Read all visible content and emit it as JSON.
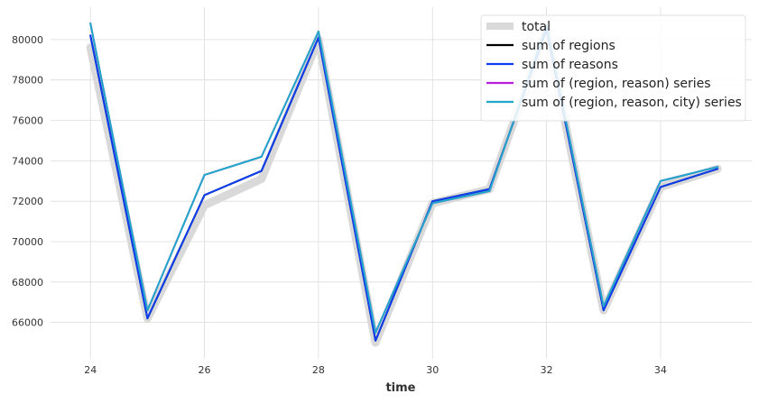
{
  "chart_data": {
    "type": "line",
    "title": "",
    "xlabel": "time",
    "ylabel": "",
    "x": [
      24,
      25,
      26,
      27,
      28,
      29,
      30,
      31,
      32,
      33,
      34,
      35
    ],
    "xlim": [
      23.3,
      35.6
    ],
    "ylim": [
      64200,
      81600
    ],
    "xticks": [
      24,
      26,
      28,
      30,
      32,
      34
    ],
    "yticks": [
      66000,
      68000,
      70000,
      72000,
      74000,
      76000,
      78000,
      80000
    ],
    "grid": true,
    "legend_position": "top-right",
    "series": [
      {
        "name": "total",
        "color": "#d9d9d9",
        "width": 9,
        "values": [
          79600,
          66200,
          71800,
          73100,
          80000,
          65000,
          71900,
          72600,
          80400,
          66600,
          72700,
          73600
        ]
      },
      {
        "name": "sum of regions",
        "color": "#000000",
        "width": 2,
        "values": [
          80200,
          66200,
          72300,
          73500,
          80100,
          65100,
          72000,
          72600,
          80500,
          66600,
          72700,
          73600
        ]
      },
      {
        "name": "sum of reasons",
        "color": "#0c3df0",
        "width": 2,
        "values": [
          80200,
          66200,
          72300,
          73500,
          80100,
          65100,
          72000,
          72600,
          80500,
          66600,
          72700,
          73600
        ]
      },
      {
        "name": "sum of (region, reason) series",
        "color": "#b71ed9",
        "width": 2,
        "values": [
          80800,
          66600,
          73300,
          74200,
          80400,
          65500,
          71900,
          72500,
          80700,
          66800,
          73000,
          73700
        ]
      },
      {
        "name": "sum of (region, reason, city) series",
        "color": "#1fa8c9",
        "width": 2,
        "values": [
          80800,
          66600,
          73300,
          74200,
          80400,
          65500,
          71900,
          72500,
          80700,
          66800,
          73000,
          73700
        ]
      }
    ]
  }
}
